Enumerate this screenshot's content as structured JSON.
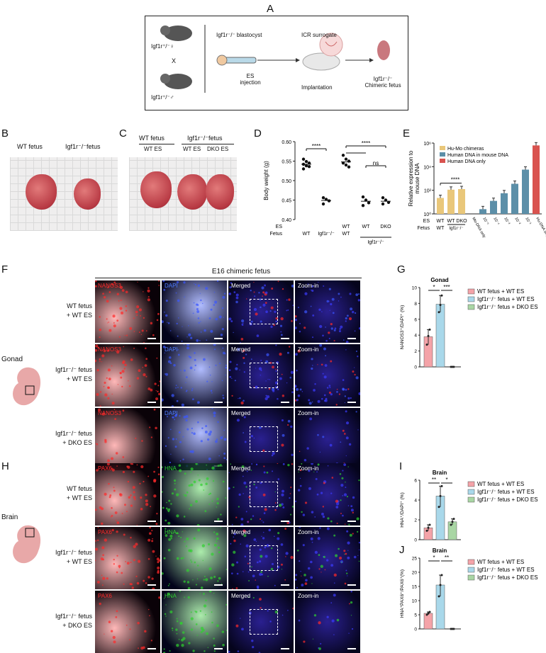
{
  "panels": {
    "A": "A",
    "B": "B",
    "C": "C",
    "D": "D",
    "E": "E",
    "F": "F",
    "G": "G",
    "H": "H",
    "I": "I",
    "J": "J"
  },
  "schematic": {
    "female": "Igf1r⁺/⁻♀",
    "cross": "X",
    "male": "Igf1r⁺/⁻♂",
    "blastocyst": "Igf1r⁻/⁻ blastocyst",
    "surrogate": "ICR surrogate",
    "es_injection": "ES\ninjection",
    "es_line1": "ES",
    "es_line2": "injection",
    "implantation": "Implantation",
    "chimeric_line1": "Igf1r⁻/⁻",
    "chimeric_line2": "Chimeric fetus"
  },
  "panelB": {
    "wt_label": "WT fetus",
    "ko_label": "Igf1r⁻/⁻fetus"
  },
  "panelC": {
    "wt_label": "WT fetus",
    "wt_es": "WT ES",
    "ko_label": "Igf1r⁻/⁻fetus",
    "ko_es1": "WT ES",
    "ko_es2": "DKO ES"
  },
  "panelF": {
    "title": "E16 chimeric fetus",
    "organ": "Gonad",
    "rows": [
      {
        "l1": "WT fetus",
        "l2": "+ WT ES"
      },
      {
        "l1": "Igf1r⁻/⁻ fetus",
        "l2": "+ WT ES"
      },
      {
        "l1": "Igf1r⁻/⁻ fetus",
        "l2": "+ DKO ES"
      }
    ],
    "channels": {
      "c1": "NANOS3",
      "c2": "DAPI",
      "merged": "Merged",
      "zoom": "Zoom-in"
    }
  },
  "panelH": {
    "organ": "Brain",
    "rows": [
      {
        "l1": "WT fetus",
        "l2": "+ WT ES"
      },
      {
        "l1": "Igf1r⁻/⁻ fetus",
        "l2": "+ WT ES"
      },
      {
        "l1": "Igf1r⁻/⁻ fetus",
        "l2": "+ DKO ES"
      }
    ],
    "channels": {
      "c1": "PAX6",
      "c2": "HNA",
      "merged": "Merged",
      "zoom": "Zoom-in"
    }
  },
  "legend_groups": {
    "g1": "WT fetus + WT ES",
    "g2": "Igf1r⁻/⁻ fetus + WT ES",
    "g3": "Igf1r⁻/⁻ fetus + DKO ES"
  },
  "colors": {
    "g1": "#f4a3a8",
    "g2": "#a9d8ea",
    "g3": "#a9d6a4",
    "hu_mo": "#e9c77a",
    "human_in_mouse": "#5c8fa8",
    "human_only": "#d9534f"
  },
  "chart_data": [
    {
      "id": "D",
      "type": "scatter",
      "ylabel": "Body weight (g)",
      "ylim": [
        0.4,
        0.6
      ],
      "yticks": [
        "0.40",
        "0.45",
        "0.50",
        "0.55",
        "0.60"
      ],
      "row_es": "ES",
      "row_fetus": "Fetus",
      "groups": [
        {
          "es": "",
          "fetus": "WT",
          "points": [
            0.555,
            0.549,
            0.545,
            0.542,
            0.538,
            0.536,
            0.53
          ],
          "mean": 0.542
        },
        {
          "es": "",
          "fetus": "Igf1r⁻/⁻",
          "points": [
            0.456,
            0.452,
            0.448,
            0.44
          ],
          "mean": 0.449
        },
        {
          "es": "WT",
          "fetus": "WT",
          "points": [
            0.565,
            0.555,
            0.55,
            0.545,
            0.54,
            0.535
          ],
          "mean": 0.548
        },
        {
          "es": "WT",
          "fetus": "",
          "points": [
            0.458,
            0.45,
            0.443,
            0.436
          ],
          "mean": 0.447
        },
        {
          "es": "DKO",
          "fetus": "",
          "points": [
            0.456,
            0.45,
            0.444,
            0.44
          ],
          "mean": 0.447
        }
      ],
      "fetus_group": "Igf1r⁻/⁻",
      "sig": [
        "****",
        "****",
        "ns"
      ]
    },
    {
      "id": "E",
      "type": "bar",
      "ylabel": "Relative expression to\nmouse DNA",
      "ylabel1": "Relative expression to",
      "ylabel2": "mouse DNA",
      "yticks": [
        "10⁰",
        "10²",
        "10⁴",
        "10⁶"
      ],
      "ylim_log10": [
        0,
        6
      ],
      "legend": [
        "Hu-Mo chimeras",
        "Human DNA in mouse DNA",
        "Human DNA only"
      ],
      "row_es": "ES",
      "row_fetus": "Fetus",
      "categories": [
        "WT",
        "WT",
        "DKO",
        "Mo-DNA only",
        "10⁻⁵",
        "10⁻⁴",
        "10⁻³",
        "10⁻²",
        "10⁻¹",
        "Hu-DNA only"
      ],
      "es_labels": [
        "WT",
        "WT",
        "DKO"
      ],
      "fetus_labels": [
        "WT",
        "Igf1r⁻/⁻"
      ],
      "log10_values": [
        1.35,
        2.05,
        2.1,
        0,
        0.4,
        1.1,
        1.75,
        2.55,
        3.75,
        5.8
      ],
      "series_index": [
        0,
        0,
        0,
        1,
        1,
        1,
        1,
        1,
        1,
        2
      ],
      "sig": [
        "****"
      ]
    },
    {
      "id": "G",
      "type": "bar",
      "title": "Gonad",
      "ylabel": "NANOS3⁺/DAPI⁺ (%)",
      "ylim": [
        0,
        10
      ],
      "yticks": [
        "0",
        "2",
        "4",
        "6",
        "8",
        "10"
      ],
      "categories": [
        "WT fetus + WT ES",
        "Igf1r⁻/⁻ fetus + WT ES",
        "Igf1r⁻/⁻ fetus + DKO ES"
      ],
      "values": [
        3.8,
        7.9,
        0
      ],
      "points": [
        [
          2.8,
          3.9,
          4.7
        ],
        [
          6.9,
          7.8,
          9.0
        ],
        [
          0,
          0,
          0
        ]
      ],
      "sig": [
        "*",
        "***"
      ]
    },
    {
      "id": "I",
      "type": "bar",
      "title": "Brain",
      "ylabel": "HNA⁺/DAPI⁺ (%)",
      "ylim": [
        0,
        6
      ],
      "yticks": [
        "0",
        "2",
        "4",
        "6"
      ],
      "categories": [
        "WT fetus + WT ES",
        "Igf1r⁻/⁻ fetus + WT ES",
        "Igf1r⁻/⁻ fetus + DKO ES"
      ],
      "values": [
        1.2,
        4.4,
        1.8
      ],
      "points": [
        [
          0.9,
          1.2,
          1.5
        ],
        [
          3.3,
          4.4,
          5.4
        ],
        [
          1.5,
          1.8,
          2.1
        ]
      ],
      "sig": [
        "**",
        "*"
      ]
    },
    {
      "id": "J",
      "type": "bar",
      "title": "Brain",
      "ylabel": "HNA⁺PAX6⁺/PAX6⁺(%)",
      "ylim": [
        0,
        25
      ],
      "yticks": [
        "0",
        "5",
        "10",
        "15",
        "20",
        "25"
      ],
      "categories": [
        "WT fetus + WT ES",
        "Igf1r⁻/⁻ fetus + WT ES",
        "Igf1r⁻/⁻ fetus + DKO ES"
      ],
      "values": [
        5.5,
        15.5,
        0
      ],
      "points": [
        [
          5.0,
          5.5,
          6.0
        ],
        [
          11.5,
          15.5,
          19.0
        ],
        [
          0,
          0,
          0
        ]
      ],
      "sig": [
        "*",
        "**"
      ]
    }
  ]
}
